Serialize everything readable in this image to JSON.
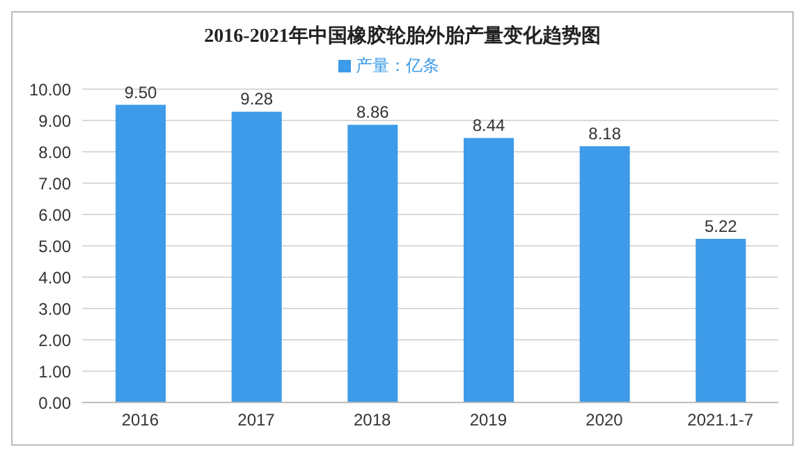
{
  "chart_data": {
    "type": "bar",
    "title": "2016-2021年中国橡胶轮胎外胎产量变化趋势图",
    "categories": [
      "2016",
      "2017",
      "2018",
      "2019",
      "2020",
      "2021.1-7"
    ],
    "series": [
      {
        "name": "产量：亿条",
        "color": "#3d9be9",
        "values": [
          9.5,
          9.28,
          8.86,
          8.44,
          8.18,
          5.22
        ],
        "value_labels": [
          "9.50",
          "9.28",
          "8.86",
          "8.44",
          "8.18",
          "5.22"
        ]
      }
    ],
    "ylim": [
      0,
      10
    ],
    "yticks": [
      {
        "value": 0,
        "label": "0.00"
      },
      {
        "value": 1,
        "label": "1.00"
      },
      {
        "value": 2,
        "label": "2.00"
      },
      {
        "value": 3,
        "label": "3.00"
      },
      {
        "value": 4,
        "label": "4.00"
      },
      {
        "value": 5,
        "label": "5.00"
      },
      {
        "value": 6,
        "label": "6.00"
      },
      {
        "value": 7,
        "label": "7.00"
      },
      {
        "value": 8,
        "label": "8.00"
      },
      {
        "value": 9,
        "label": "9.00"
      },
      {
        "value": 10,
        "label": "10.00"
      }
    ],
    "grid": "y",
    "legend": "top"
  }
}
